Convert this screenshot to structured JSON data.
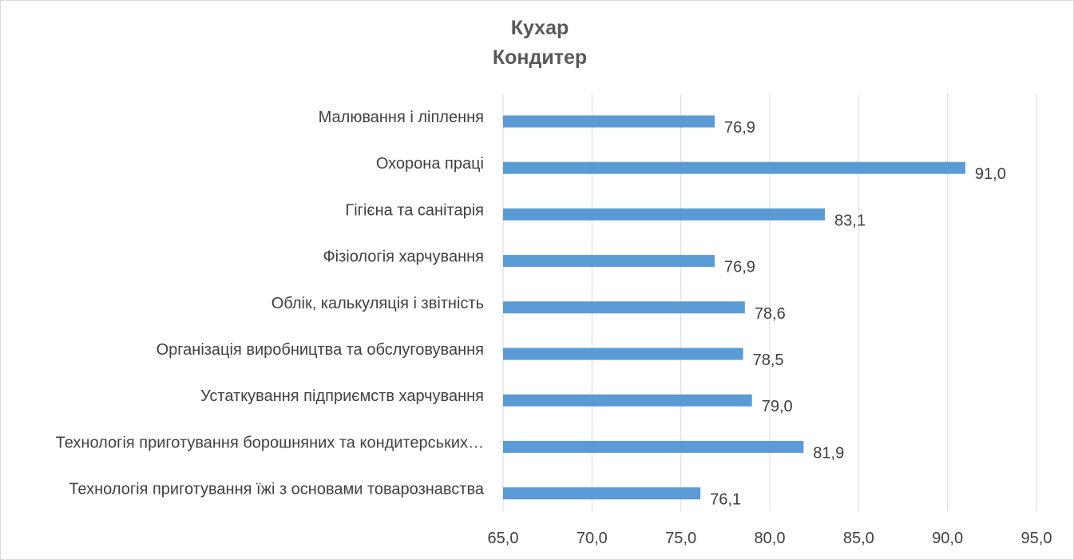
{
  "chart_data": {
    "type": "bar",
    "orientation": "horizontal",
    "title": [
      "Кухар",
      "Кондитер"
    ],
    "categories": [
      "Малювання і ліплення",
      "Охорона праці",
      "Гігієна та санітарія",
      "Фізіологія харчування",
      "Облік, калькуляція і звітність",
      "Організація виробництва та обслуговування",
      "Устаткування підприємств харчування",
      "Технологія приготування борошняних та кондитерських…",
      "Технологія приготування їжі з основами товарознавства"
    ],
    "values": [
      76.9,
      91.0,
      83.1,
      76.9,
      78.6,
      78.5,
      79.0,
      81.9,
      76.1
    ],
    "value_labels": [
      "76,9",
      "91,0",
      "83,1",
      "76,9",
      "78,6",
      "78,5",
      "79,0",
      "81,9",
      "76,1"
    ],
    "xlim": [
      65,
      95
    ],
    "xticks": [
      65,
      70,
      75,
      80,
      85,
      90,
      95
    ],
    "xtick_labels": [
      "65,0",
      "70,0",
      "75,0",
      "80,0",
      "85,0",
      "90,0",
      "95,0"
    ],
    "xlabel": "",
    "ylabel": "",
    "grid": true,
    "legend": "none",
    "bar_color": "#5b9bd5",
    "grid_color": "#d9d9d9",
    "text_color": "#404040",
    "title_color": "#595959"
  }
}
